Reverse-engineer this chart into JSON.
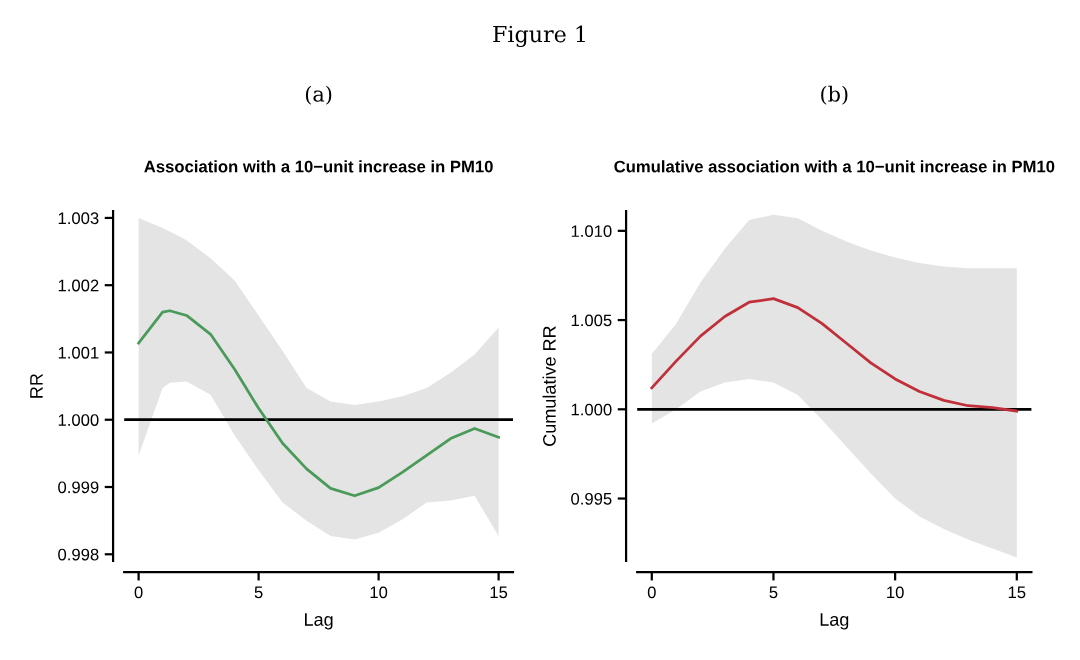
{
  "chart_data": [
    {
      "type": "line",
      "title": "Association with a 10−unit increase in PM10",
      "xlabel": "Lag",
      "ylabel": "RR",
      "annotations": [
        "Figure 1",
        "(a)"
      ],
      "xlim": [
        -0.6,
        15.6
      ],
      "ylim": [
        0.9979,
        1.0031
      ],
      "xticks": [
        0,
        5,
        10,
        15
      ],
      "yticks": [
        {
          "value": 0.998,
          "label": "0.998"
        },
        {
          "value": 0.999,
          "label": "0.999"
        },
        {
          "value": 1.0,
          "label": "1.000"
        },
        {
          "value": 1.001,
          "label": "1.001"
        },
        {
          "value": 1.002,
          "label": "1.002"
        },
        {
          "value": 1.003,
          "label": "1.003"
        }
      ],
      "ref_lines": [
        {
          "axis": "y",
          "value": 1.0,
          "label": null,
          "color": "#000000"
        }
      ],
      "grid": false,
      "series": [
        {
          "color": "#4a9a5a",
          "x": [
            0,
            1,
            1.3,
            2,
            3,
            4,
            5,
            6,
            7,
            8,
            9,
            10,
            11,
            12,
            13,
            14,
            15
          ],
          "values": [
            1.00114,
            1.0016,
            1.00162,
            1.00155,
            1.00127,
            1.00075,
            1.00017,
            0.99965,
            0.99927,
            0.99898,
            0.99887,
            0.99899,
            0.99922,
            0.99947,
            0.99972,
            0.99987,
            0.99974
          ],
          "lower": [
            0.99947,
            1.00047,
            1.00055,
            1.00057,
            1.00037,
            0.99977,
            0.99925,
            0.99877,
            0.9985,
            0.99827,
            0.99822,
            0.99832,
            0.99852,
            0.99877,
            0.9988,
            0.99887,
            0.99827
          ],
          "upper": [
            1.003,
            1.00285,
            1.0028,
            1.00267,
            1.0024,
            1.00207,
            1.00155,
            1.00102,
            1.00047,
            1.00027,
            1.00022,
            1.00027,
            1.00035,
            1.00047,
            1.0007,
            1.00097,
            1.00137
          ]
        }
      ]
    },
    {
      "type": "line",
      "title": "Cumulative association with a 10−unit increase in PM10",
      "xlabel": "Lag",
      "ylabel": "Cumulative RR",
      "annotations": [
        "(b)"
      ],
      "xlim": [
        -0.6,
        15.6
      ],
      "ylim": [
        0.9915,
        1.0111
      ],
      "xticks": [
        0,
        5,
        10,
        15
      ],
      "yticks": [
        {
          "value": 0.995,
          "label": "0.995"
        },
        {
          "value": 1.0,
          "label": "1.000"
        },
        {
          "value": 1.005,
          "label": "1.005"
        },
        {
          "value": 1.01,
          "label": "1.010"
        }
      ],
      "ref_lines": [
        {
          "axis": "y",
          "value": 1.0,
          "label": null,
          "color": "#000000"
        }
      ],
      "grid": false,
      "series": [
        {
          "color": "#c0303a",
          "x": [
            0,
            1,
            2,
            3,
            4,
            5,
            6,
            7,
            8,
            9,
            10,
            11,
            12,
            13,
            14,
            15
          ],
          "values": [
            1.0012,
            1.0027,
            1.0041,
            1.0052,
            1.006,
            1.0062,
            1.0057,
            1.0048,
            1.0037,
            1.0026,
            1.0017,
            1.001,
            1.0005,
            1.0002,
            1.0001,
            0.9999
          ],
          "lower": [
            0.9992,
            1.0,
            1.001,
            1.0015,
            1.0017,
            1.0015,
            1.0008,
            0.9994,
            0.9979,
            0.9964,
            0.995,
            0.994,
            0.9933,
            0.9927,
            0.9922,
            0.9917
          ],
          "upper": [
            1.0031,
            1.0048,
            1.0071,
            1.009,
            1.0106,
            1.0109,
            1.0107,
            1.01,
            1.0094,
            1.0089,
            1.0085,
            1.0082,
            1.008,
            1.0079,
            1.0079,
            1.0079
          ]
        }
      ]
    }
  ]
}
